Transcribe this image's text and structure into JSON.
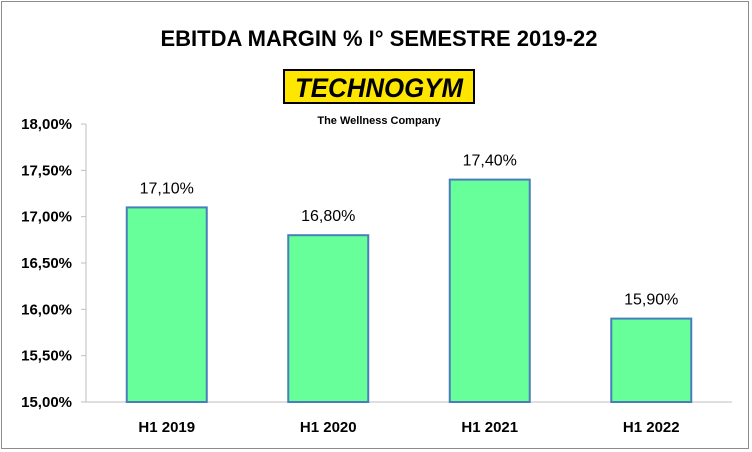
{
  "chart_data": {
    "type": "bar",
    "title": "EBITDA  MARGIN % I° SEMESTRE  2019-22",
    "categories": [
      "H1 2019",
      "H1 2020",
      "H1 2021",
      "H1 2022"
    ],
    "values": [
      17.1,
      16.8,
      17.4,
      15.9
    ],
    "value_labels": [
      "17,10%",
      "16,80%",
      "17,40%",
      "15,90%"
    ],
    "ylim": [
      15.0,
      18.0
    ],
    "y_ticks": [
      15.0,
      15.5,
      16.0,
      16.5,
      17.0,
      17.5,
      18.0
    ],
    "y_tick_labels": [
      "15,00%",
      "15,50%",
      "16,00%",
      "16,50%",
      "17,00%",
      "17,50%",
      "18,00%"
    ],
    "xlabel": "",
    "ylabel": "",
    "grid": false,
    "legend": "none",
    "colors": {
      "bar_fill": "#66ff99",
      "bar_stroke": "#4a7ebb",
      "axis": "#bfbfbf"
    }
  },
  "logo": {
    "brand": "TECHNOGYM",
    "tagline": "The Wellness Company",
    "colors": {
      "background": "#ffe600",
      "text": "#000000"
    }
  }
}
